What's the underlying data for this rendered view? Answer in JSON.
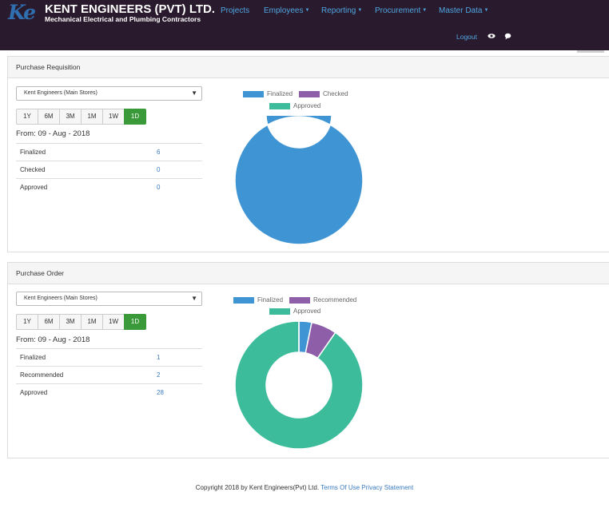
{
  "brand": {
    "mark": "Ke",
    "title": "KENT ENGINEERS (PVT) LTD.",
    "subtitle": "Mechanical Electrical and Plumbing Contractors"
  },
  "nav": {
    "projects": "Projects",
    "employees": "Employees",
    "reporting": "Reporting",
    "procurement": "Procurement",
    "master_data": "Master Data",
    "logout": "Logout",
    "eye_icon": "eye-icon",
    "chat_icon": "chat-bubble-icon"
  },
  "ranges": [
    "1Y",
    "6M",
    "3M",
    "1M",
    "1W",
    "1D"
  ],
  "active_range": "1D",
  "requisition": {
    "heading": "Purchase Requisition",
    "store": "Kent Engineers (Main Stores)",
    "from": "From: 09 - Aug - 2018",
    "rows": [
      {
        "label": "Finalized",
        "value": "6"
      },
      {
        "label": "Checked",
        "value": "0"
      },
      {
        "label": "Approved",
        "value": "0"
      }
    ],
    "legend": [
      "Finalized",
      "Checked",
      "Approved"
    ]
  },
  "order": {
    "heading": "Purchase Order",
    "store": "Kent Engineers (Main Stores)",
    "from": "From: 09 - Aug - 2018",
    "rows": [
      {
        "label": "Finalized",
        "value": "1"
      },
      {
        "label": "Recommended",
        "value": "2"
      },
      {
        "label": "Approved",
        "value": "28"
      }
    ],
    "legend": [
      "Finalized",
      "Recommended",
      "Approved"
    ]
  },
  "colors": {
    "finalized": "#3f95d3",
    "checked": "#8e5ea8",
    "recommended": "#8e5ea8",
    "approved": "#3dbc9c"
  },
  "chart_data": [
    {
      "type": "pie",
      "title": "",
      "categories": [
        "Finalized",
        "Checked",
        "Approved"
      ],
      "values": [
        6,
        0,
        0
      ],
      "colors": [
        "#3f95d3",
        "#8e5ea8",
        "#3dbc9c"
      ],
      "legend": "top"
    },
    {
      "type": "pie",
      "title": "",
      "categories": [
        "Finalized",
        "Recommended",
        "Approved"
      ],
      "values": [
        1,
        2,
        28
      ],
      "colors": [
        "#3f95d3",
        "#8e5ea8",
        "#3dbc9c"
      ],
      "legend": "top"
    }
  ],
  "footer": {
    "copyright": "Copyright 2018 by Kent Engineers(Pvt) Ltd.",
    "terms": "Terms Of Use",
    "privacy": "Privacy Statement"
  }
}
